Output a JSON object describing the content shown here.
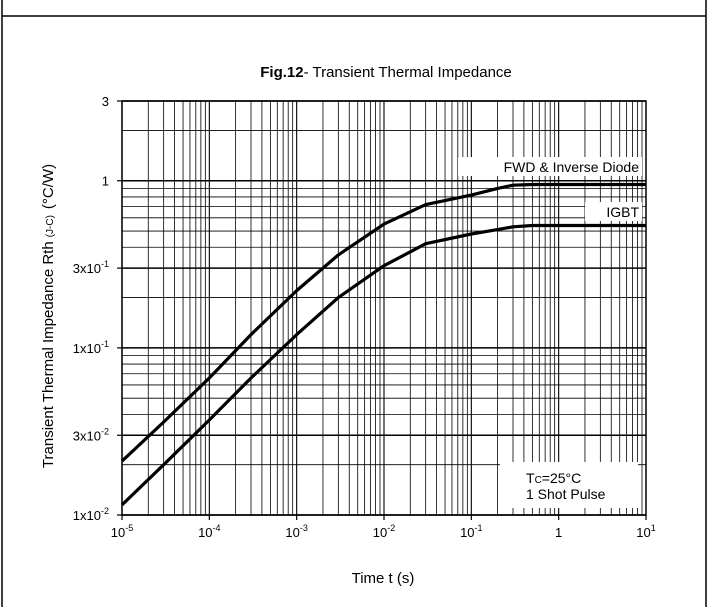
{
  "chart_data": {
    "type": "line",
    "title_bold": "Fig.12",
    "title_rest": "- Transient Thermal Impedance",
    "xlabel": "Time t (s)",
    "ylabel_main": "Transient Thermal Impedance  Rth",
    "ylabel_sub": "(J-C)",
    "ylabel_unit": "(°C/W)",
    "x_scale": "log",
    "y_scale": "log",
    "xlim": [
      1e-05,
      10
    ],
    "ylim": [
      0.01,
      3
    ],
    "grid": true,
    "x_ticks": [
      {
        "base": "10",
        "exp": "-5",
        "value": 1e-05
      },
      {
        "base": "10",
        "exp": "-4",
        "value": 0.0001
      },
      {
        "base": "10",
        "exp": "-3",
        "value": 0.001
      },
      {
        "base": "10",
        "exp": "-2",
        "value": 0.01
      },
      {
        "base": "10",
        "exp": "-1",
        "value": 0.1
      },
      {
        "base": "1",
        "exp": "",
        "value": 1
      },
      {
        "base": "10",
        "exp": "1",
        "value": 10
      }
    ],
    "y_ticks": [
      {
        "base": "3",
        "exp": "",
        "value": 3
      },
      {
        "base": "1",
        "exp": "",
        "value": 1
      },
      {
        "base": "3x10",
        "exp": "-1",
        "value": 0.3
      },
      {
        "base": "1x10",
        "exp": "-1",
        "value": 0.1
      },
      {
        "base": "3x10",
        "exp": "-2",
        "value": 0.03
      },
      {
        "base": "1x10",
        "exp": "-2",
        "value": 0.01
      }
    ],
    "series": [
      {
        "name": "FWD & Inverse Diode",
        "x": [
          1e-05,
          3e-05,
          0.0001,
          0.0003,
          0.001,
          0.003,
          0.01,
          0.03,
          0.1,
          0.2,
          0.3,
          0.5,
          1,
          3,
          10
        ],
        "y": [
          0.021,
          0.036,
          0.066,
          0.12,
          0.22,
          0.36,
          0.55,
          0.72,
          0.82,
          0.9,
          0.94,
          0.95,
          0.95,
          0.95,
          0.95
        ]
      },
      {
        "name": "IGBT",
        "x": [
          1e-05,
          3e-05,
          0.0001,
          0.0003,
          0.001,
          0.003,
          0.01,
          0.03,
          0.1,
          0.2,
          0.3,
          0.5,
          1,
          3,
          10
        ],
        "y": [
          0.0115,
          0.02,
          0.037,
          0.066,
          0.12,
          0.2,
          0.31,
          0.42,
          0.48,
          0.51,
          0.53,
          0.54,
          0.54,
          0.54,
          0.54
        ]
      }
    ],
    "annotation_line1_main": "T",
    "annotation_line1_sub": "C",
    "annotation_line1_rest": "=25°C",
    "annotation_line2": "1 Shot Pulse"
  }
}
